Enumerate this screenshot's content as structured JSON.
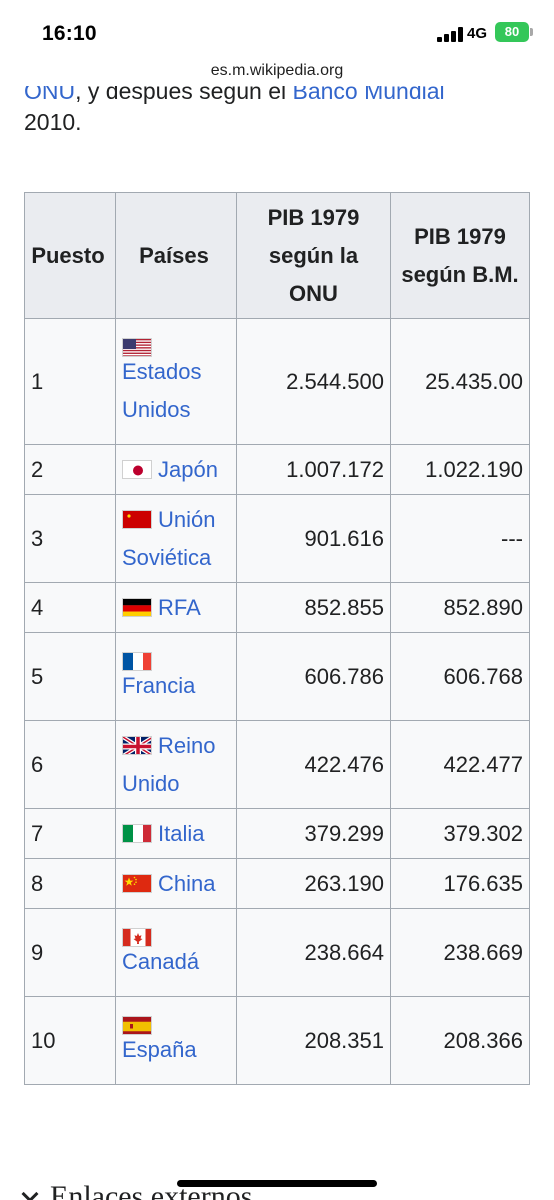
{
  "status_bar": {
    "time": "16:10",
    "network": "4G",
    "battery": "80"
  },
  "browser": {
    "url": "es.m.wikipedia.org"
  },
  "article": {
    "partial_line": {
      "link1": "ONU",
      "text": ", y después según el ",
      "link2": "Banco Mundial"
    },
    "year_text": "2010."
  },
  "table": {
    "headers": [
      "Puesto",
      "Países",
      "PIB 1979 según la ONU",
      "PIB 1979 según B.M."
    ],
    "rows": [
      {
        "rank": "1",
        "flag": "us-flag",
        "country": "Estados Unidos",
        "onu": "2.544.500",
        "bm": "25.435.00"
      },
      {
        "rank": "2",
        "flag": "japan-flag",
        "country": "Japón",
        "onu": "1.007.172",
        "bm": "1.022.190"
      },
      {
        "rank": "3",
        "flag": "ussr-flag",
        "country": "Unión Soviética",
        "onu": "901.616",
        "bm": "---"
      },
      {
        "rank": "4",
        "flag": "west-germany-flag",
        "country": "RFA",
        "onu": "852.855",
        "bm": "852.890"
      },
      {
        "rank": "5",
        "flag": "france-flag",
        "country": "Francia",
        "onu": "606.786",
        "bm": "606.768"
      },
      {
        "rank": "6",
        "flag": "uk-flag",
        "country": "Reino Unido",
        "onu": "422.476",
        "bm": "422.477"
      },
      {
        "rank": "7",
        "flag": "italy-flag",
        "country": "Italia",
        "onu": "379.299",
        "bm": "379.302"
      },
      {
        "rank": "8",
        "flag": "china-flag",
        "country": "China",
        "onu": "263.190",
        "bm": "176.635"
      },
      {
        "rank": "9",
        "flag": "canada-flag",
        "country": "Canadá",
        "onu": "238.664",
        "bm": "238.669"
      },
      {
        "rank": "10",
        "flag": "spain-flag",
        "country": "España",
        "onu": "208.351",
        "bm": "208.366"
      }
    ]
  },
  "section": {
    "title": "Enlaces externos"
  },
  "colors": {
    "link": "#3366cc",
    "header_bg": "#eaecf0",
    "cell_bg": "#f8f9fa",
    "border": "#a2a9b1",
    "battery": "#34c759"
  }
}
